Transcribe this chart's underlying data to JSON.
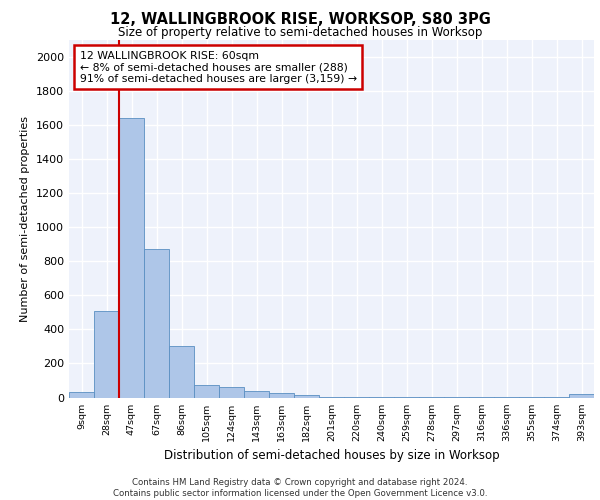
{
  "title1": "12, WALLINGBROOK RISE, WORKSOP, S80 3PG",
  "title2": "Size of property relative to semi-detached houses in Worksop",
  "xlabel": "Distribution of semi-detached houses by size in Worksop",
  "ylabel": "Number of semi-detached properties",
  "categories": [
    "9sqm",
    "28sqm",
    "47sqm",
    "67sqm",
    "86sqm",
    "105sqm",
    "124sqm",
    "143sqm",
    "163sqm",
    "182sqm",
    "201sqm",
    "220sqm",
    "240sqm",
    "259sqm",
    "278sqm",
    "297sqm",
    "316sqm",
    "336sqm",
    "355sqm",
    "374sqm",
    "393sqm"
  ],
  "values": [
    35,
    510,
    1640,
    870,
    305,
    75,
    60,
    40,
    25,
    15,
    5,
    5,
    5,
    5,
    5,
    5,
    5,
    5,
    5,
    5,
    20
  ],
  "bar_color": "#aec6e8",
  "bar_edge_color": "#5a8fc2",
  "annotation_line1": "12 WALLINGBROOK RISE: 60sqm",
  "annotation_line2": "← 8% of semi-detached houses are smaller (288)",
  "annotation_line3": "91% of semi-detached houses are larger (3,159) →",
  "annotation_box_color": "#ffffff",
  "annotation_box_edge_color": "#cc0000",
  "redline_x": 1.5,
  "ylim": [
    0,
    2100
  ],
  "yticks": [
    0,
    200,
    400,
    600,
    800,
    1000,
    1200,
    1400,
    1600,
    1800,
    2000
  ],
  "bg_color": "#eef2fb",
  "footer_text": "Contains HM Land Registry data © Crown copyright and database right 2024.\nContains public sector information licensed under the Open Government Licence v3.0.",
  "grid_color": "#ffffff"
}
